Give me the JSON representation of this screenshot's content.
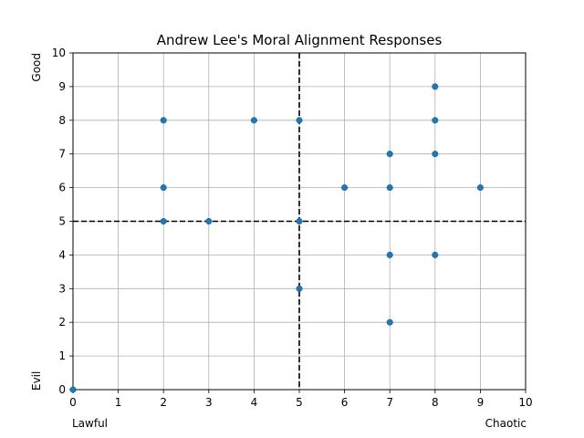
{
  "chart_data": {
    "type": "scatter",
    "title": "Andrew Lee's Moral Alignment Responses",
    "xlim": [
      0,
      10
    ],
    "ylim": [
      0,
      10
    ],
    "xticks": [
      "0",
      "1",
      "2",
      "3",
      "4",
      "5",
      "6",
      "7",
      "8",
      "9",
      "10"
    ],
    "yticks": [
      "0",
      "1",
      "2",
      "3",
      "4",
      "5",
      "6",
      "7",
      "8",
      "9",
      "10"
    ],
    "x_left_label": "Lawful",
    "x_right_label": "Chaotic",
    "y_top_label": "Good",
    "y_bottom_label": "Evil",
    "grid": true,
    "reference_lines": {
      "x": 5,
      "y": 5,
      "style": "dashed"
    },
    "marker_color": "#1f77b4",
    "points": [
      {
        "x": 0,
        "y": 0
      },
      {
        "x": 2,
        "y": 8
      },
      {
        "x": 2,
        "y": 6
      },
      {
        "x": 2,
        "y": 5
      },
      {
        "x": 3,
        "y": 5
      },
      {
        "x": 4,
        "y": 8
      },
      {
        "x": 5,
        "y": 8
      },
      {
        "x": 5,
        "y": 5
      },
      {
        "x": 5,
        "y": 3
      },
      {
        "x": 6,
        "y": 6
      },
      {
        "x": 7,
        "y": 7
      },
      {
        "x": 7,
        "y": 6
      },
      {
        "x": 7,
        "y": 4
      },
      {
        "x": 7,
        "y": 2
      },
      {
        "x": 8,
        "y": 9
      },
      {
        "x": 8,
        "y": 8
      },
      {
        "x": 8,
        "y": 7
      },
      {
        "x": 8,
        "y": 4
      },
      {
        "x": 9,
        "y": 6
      }
    ]
  }
}
